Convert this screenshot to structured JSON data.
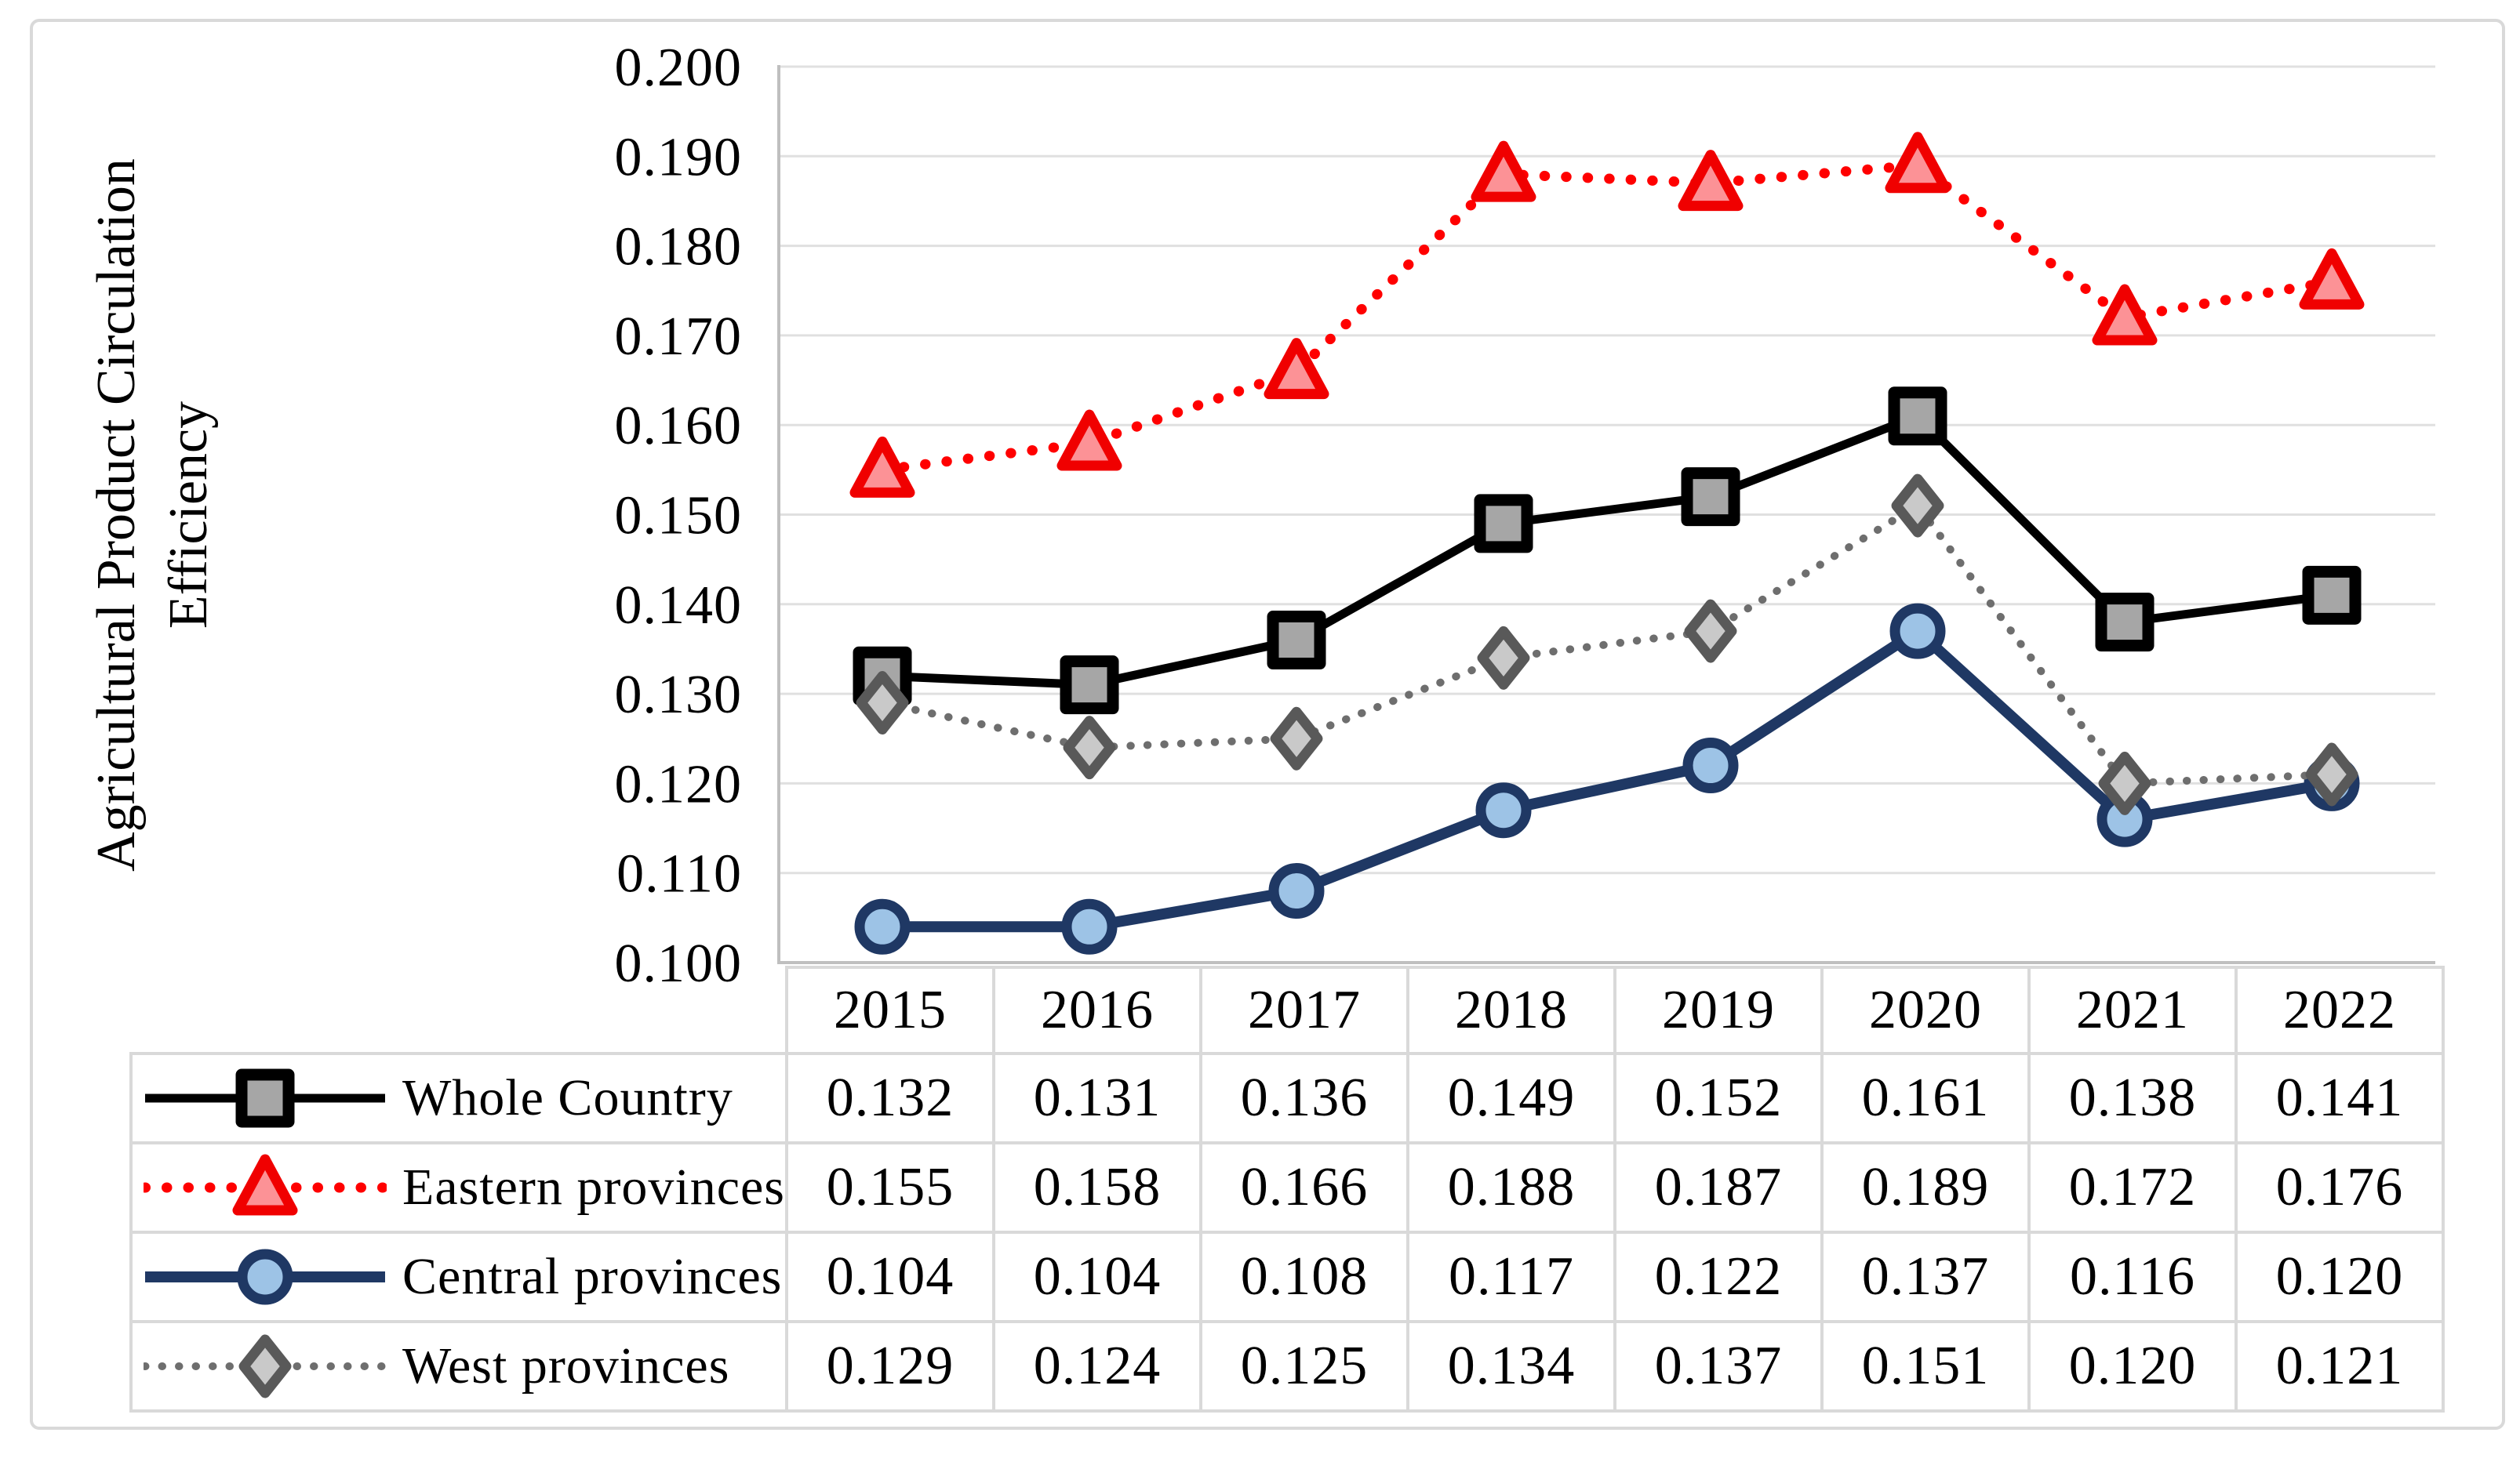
{
  "style": {
    "background": "#FFFFFF",
    "figure_border": "#D9D9D9",
    "table_border": "#D9D9D9",
    "grid_color": "#E0E0E0",
    "axis_color": "#BFBFBF",
    "text_color": "#000000"
  },
  "chart_data": {
    "type": "line",
    "title": "",
    "xlabel": "",
    "ylabel": "Agricultural Product Circulation Efficiency",
    "ylabel_lines": [
      "Agricultural Product Circulation",
      "Efficiency"
    ],
    "categories": [
      "2015",
      "2016",
      "2017",
      "2018",
      "2019",
      "2020",
      "2021",
      "2022"
    ],
    "ylim": [
      0.1,
      0.2
    ],
    "ytick_step": 0.01,
    "ytick_decimals": 3,
    "ytick_labels": [
      "0.200",
      "0.190",
      "0.180",
      "0.170",
      "0.160",
      "0.150",
      "0.140",
      "0.130",
      "0.120",
      "0.110",
      "0.100"
    ],
    "grid": true,
    "legend_position": "table-left",
    "series": [
      {
        "name": "Whole Country",
        "values": [
          0.132,
          0.131,
          0.136,
          0.149,
          0.152,
          0.161,
          0.138,
          0.141
        ],
        "line_color": "#000000",
        "line_style": "solid",
        "line_width": 11,
        "marker": "square",
        "marker_fill": "#A6A6A6",
        "marker_stroke": "#000000"
      },
      {
        "name": "Eastern provinces",
        "values": [
          0.155,
          0.158,
          0.166,
          0.188,
          0.187,
          0.189,
          0.172,
          0.176
        ],
        "line_color": "#FF0000",
        "line_style": "dotted",
        "line_width": 13,
        "marker": "triangle",
        "marker_fill": "#FC9296",
        "marker_stroke": "#F00000"
      },
      {
        "name": "Central provinces",
        "values": [
          0.104,
          0.104,
          0.108,
          0.117,
          0.122,
          0.137,
          0.116,
          0.12
        ],
        "line_color": "#1F3864",
        "line_style": "solid",
        "line_width": 14,
        "marker": "circle",
        "marker_fill": "#9DC3E6",
        "marker_stroke": "#1F3864"
      },
      {
        "name": "West provinces",
        "values": [
          0.129,
          0.124,
          0.125,
          0.134,
          0.137,
          0.151,
          0.12,
          0.121
        ],
        "line_color": "#6E6E6E",
        "line_style": "dotted",
        "line_width": 10,
        "marker": "diamond",
        "marker_fill": "#C9C9C9",
        "marker_stroke": "#595959"
      }
    ]
  }
}
